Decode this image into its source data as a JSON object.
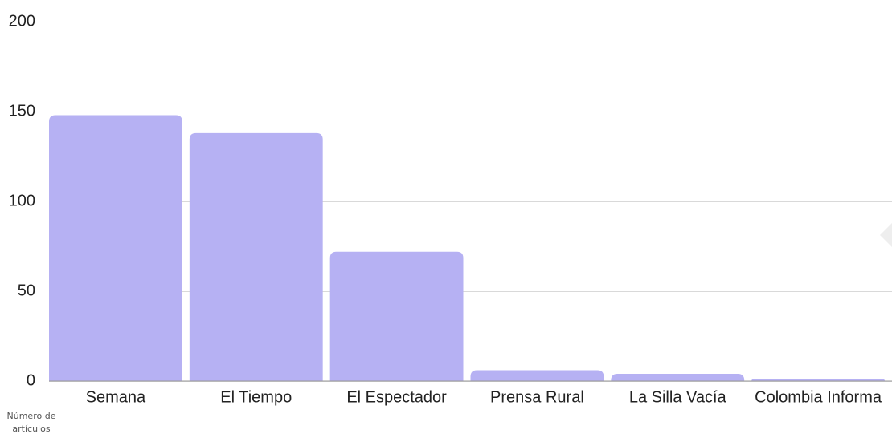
{
  "chart_data": {
    "type": "bar",
    "y_label": "Número de artículos",
    "categories": [
      "Semana",
      "El Tiempo",
      "El Espectador",
      "Prensa Rural",
      "La Silla Vacía",
      "Colombia Informa"
    ],
    "values": [
      148,
      138,
      72,
      6,
      4,
      1
    ],
    "color": "#b6b1f3",
    "ylim": [
      0,
      200
    ],
    "yticks": [
      0,
      50,
      100,
      150,
      200
    ],
    "grid": true
  }
}
